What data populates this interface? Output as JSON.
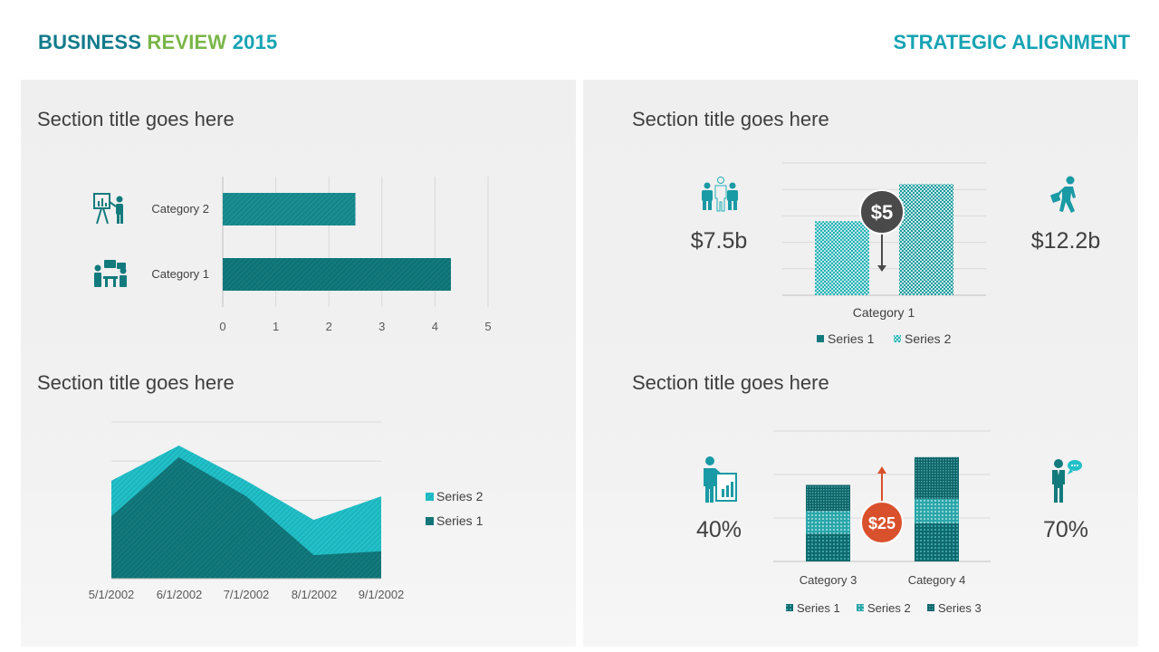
{
  "header": {
    "title_part1": "BUSINESS",
    "title_part2": "REVIEW",
    "title_part3": "2015",
    "right_title": "STRATEGIC ALIGNMENT"
  },
  "colors": {
    "teal_dark": "#127a7d",
    "teal_mid": "#1a9aa5",
    "teal_light": "#22c0c8",
    "accent_green": "#7ab648",
    "accent_orange": "#d9512c",
    "badge_gray": "#4a4a4a"
  },
  "sections": {
    "top_left_title": "Section title goes here",
    "top_right_title": "Section title goes here",
    "bottom_left_title": "Section title goes here",
    "bottom_right_title": "Section title goes here"
  },
  "top_right": {
    "left_value": "$7.5b",
    "right_value": "$12.2b",
    "badge": "$5",
    "left_icon": "team-icon",
    "right_icon": "walking-businessman-icon"
  },
  "bottom_right": {
    "left_value": "40%",
    "right_value": "70%",
    "badge": "$25",
    "left_icon": "presenter-icon",
    "right_icon": "speaking-person-icon"
  },
  "chart_data": [
    {
      "id": "hbar",
      "type": "bar",
      "orientation": "horizontal",
      "categories": [
        "Category 2",
        "Category 1"
      ],
      "values": [
        2.5,
        4.3
      ],
      "xlim": [
        0,
        5
      ],
      "xticks": [
        "0",
        "1",
        "2",
        "3",
        "4",
        "5"
      ],
      "category_icons": [
        "presentation-icon",
        "meeting-icon"
      ]
    },
    {
      "id": "column",
      "type": "bar",
      "categories": [
        "Category 1"
      ],
      "series": [
        {
          "name": "Series 1",
          "values": [
            4.2
          ]
        },
        {
          "name": "Series 2",
          "values": [
            6.3
          ]
        }
      ],
      "ylim": [
        0,
        7.5
      ],
      "legend": "bottom"
    },
    {
      "id": "area",
      "type": "area",
      "x": [
        "5/1/2002",
        "6/1/2002",
        "7/1/2002",
        "8/1/2002",
        "9/1/2002"
      ],
      "series": [
        {
          "name": "Series 1",
          "values": [
            16,
            31,
            21,
            6,
            7
          ]
        },
        {
          "name": "Series 2",
          "values": [
            9,
            3,
            4,
            9,
            14
          ]
        }
      ],
      "stacked": true,
      "ylim": [
        0,
        40
      ],
      "legend": "right"
    },
    {
      "id": "stacked",
      "type": "bar",
      "stacked": true,
      "categories": [
        "Category 3",
        "Category 4"
      ],
      "series": [
        {
          "name": "Series 1",
          "values": [
            1.6,
            2.2
          ]
        },
        {
          "name": "Series 2",
          "values": [
            1.3,
            1.4
          ]
        },
        {
          "name": "Series 3",
          "values": [
            1.5,
            2.4
          ]
        }
      ],
      "ylim": [
        0,
        7.5
      ],
      "legend": "bottom"
    }
  ]
}
